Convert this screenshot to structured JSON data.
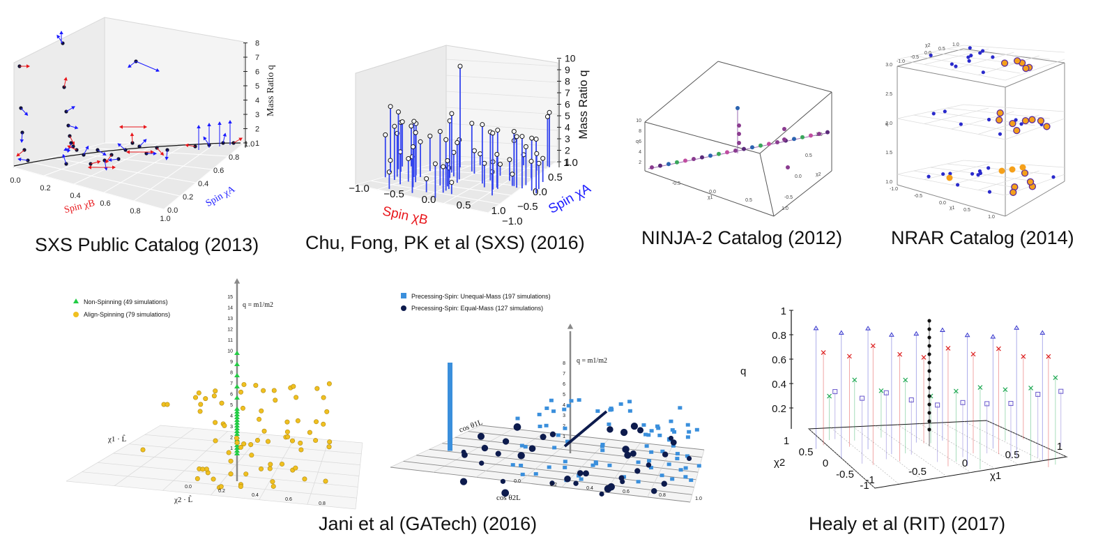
{
  "captions": {
    "p1": "SXS Public Catalog (2013)",
    "p2": "Chu, Fong, PK et al (SXS) (2016)",
    "p3": "NINJA-2 Catalog (2012)",
    "p4": "NRAR Catalog (2014)",
    "p5": "Jani et al (GATech) (2016)",
    "p6": "Healy et al (RIT) (2017)"
  },
  "chart_data": [
    {
      "id": "sxs2013",
      "type": "scatter",
      "title": "SXS Public Catalog (2013)",
      "axes": {
        "x": {
          "label": "Spin χB",
          "ticks": [
            "0.0",
            "0.2",
            "0.4",
            "0.6",
            "0.8",
            "1.0"
          ]
        },
        "y": {
          "label": "Spin χA",
          "ticks": [
            "0.0",
            "0.2",
            "0.4",
            "0.6",
            "0.8",
            "1.0"
          ]
        },
        "z": {
          "label": "Mass Ratio q",
          "ticks": [
            "1",
            "2",
            "3",
            "4",
            "5",
            "6",
            "7",
            "8"
          ]
        }
      },
      "colors": {
        "A": "#1a1aff",
        "B": "#e8161b",
        "dot": "#111133"
      }
    },
    {
      "id": "sxs2016",
      "type": "scatter",
      "title": "Chu, Fong, PK et al (SXS) (2016)",
      "axes": {
        "x": {
          "label": "Spin χB",
          "ticks": [
            "−1.0",
            "−0.5",
            "0.0",
            "0.5",
            "1.0"
          ]
        },
        "y": {
          "label": "Spin χA",
          "ticks": [
            "−1.0",
            "−0.5",
            "0.0",
            "0.5",
            "1.0"
          ]
        },
        "z": {
          "label": "Mass Ratio q",
          "ticks": [
            "1",
            "2",
            "3",
            "4",
            "5",
            "6",
            "7",
            "8",
            "9",
            "10"
          ]
        }
      }
    },
    {
      "id": "ninja2",
      "type": "scatter",
      "title": "NINJA-2 Catalog (2012)",
      "axes": {
        "x": {
          "label": "χ1",
          "ticks": [
            "-0.5",
            "0.0",
            "0.5",
            "1.0"
          ]
        },
        "y": {
          "label": "χ2",
          "ticks": [
            "-0.5",
            "0.0",
            "0.5",
            "1.0"
          ]
        },
        "z": {
          "label": "q",
          "ticks": [
            "2",
            "4",
            "6",
            "8",
            "10"
          ]
        }
      }
    },
    {
      "id": "nrar",
      "type": "scatter",
      "title": "NRAR Catalog (2014)",
      "axes": {
        "x": {
          "label": "χ1",
          "ticks": [
            "-1.0",
            "-0.5",
            "0.0",
            "0.5",
            "1.0"
          ]
        },
        "y": {
          "label": "χ2",
          "ticks": [
            "-1.0",
            "-0.5",
            "0.0",
            "0.5",
            "1.0"
          ]
        },
        "z": {
          "label": "q",
          "ticks": [
            "1.0",
            "1.5",
            "2.0",
            "2.5",
            "3.0"
          ]
        }
      },
      "layers": [
        1.0,
        2.0,
        3.0
      ]
    },
    {
      "id": "gatech2016",
      "type": "scatter",
      "title": "Jani et al (GATech) (2016)",
      "left": {
        "legend": [
          "Non-Spinning (49 simulations)",
          "Align-Spinning (79 simulations)"
        ],
        "z_ticks": [
          "1",
          "2",
          "3",
          "4",
          "5",
          "6",
          "7",
          "8",
          "9",
          "10",
          "11",
          "12",
          "13",
          "14",
          "15"
        ],
        "x_label": "χ2 · L̂",
        "y_label": "χ1 · L̂",
        "q_label": "q = m1/m2",
        "x_ticks": [
          "0.0",
          "0.2",
          "0.4",
          "0.6",
          "0.8"
        ],
        "colors": {
          "non_spinning": "#22cc44",
          "align_spinning": "#f0c020"
        }
      },
      "right": {
        "legend": [
          "Precessing-Spin: Unequal-Mass (197 simulations)",
          "Precessing-Spin: Equal-Mass (127 simulations)"
        ],
        "z_ticks": [
          "1",
          "2",
          "3",
          "4",
          "5",
          "6",
          "7",
          "8"
        ],
        "x_label": "cos θ2L",
        "y_label": "cos θ1L",
        "q_label": "q = m1/m2",
        "x_ticks": [
          "0.0",
          "0.2",
          "0.4",
          "0.6",
          "0.8",
          "1.0"
        ],
        "colors": {
          "unequal": "#3a8fdc",
          "equal": "#0d1b4d"
        }
      }
    },
    {
      "id": "rit2017",
      "type": "scatter",
      "title": "Healy et al (RIT) (2017)",
      "axes": {
        "x": {
          "label": "χ1",
          "ticks": [
            "-1",
            "-0.5",
            "0",
            "0.5",
            "1"
          ]
        },
        "y": {
          "label": "χ2",
          "ticks": [
            "-1",
            "-0.5",
            "0",
            "0.5",
            "1"
          ]
        },
        "z": {
          "label": "q",
          "ticks": [
            "0.2",
            "0.4",
            "0.6",
            "0.8",
            "1"
          ]
        }
      },
      "colors": {
        "triangle": "#3333cc",
        "cross_red": "#dd2222",
        "cross_green": "#22aa55",
        "square": "#6655cc",
        "black": "#111111"
      }
    }
  ]
}
